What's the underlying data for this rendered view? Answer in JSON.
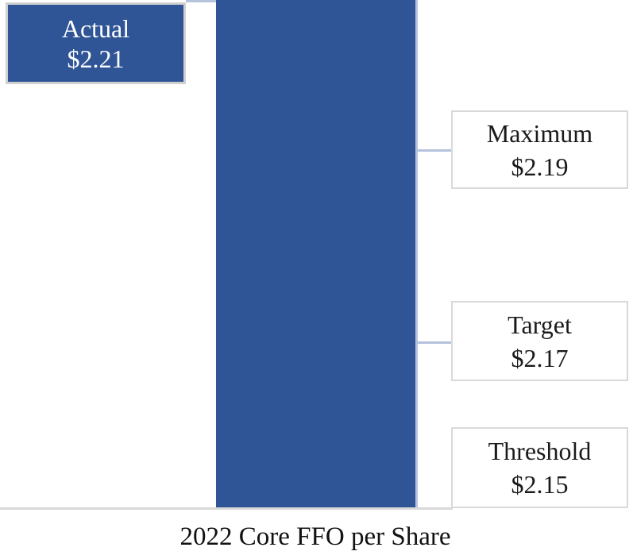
{
  "title": "2022 Core FFO per Share",
  "callouts": {
    "actual": {
      "label": "Actual",
      "value": "$2.21"
    },
    "maximum": {
      "label": "Maximum",
      "value": "$2.19"
    },
    "target": {
      "label": "Target",
      "value": "$2.17"
    },
    "threshold": {
      "label": "Threshold",
      "value": "$2.15"
    }
  },
  "colors": {
    "bar": "#2f5597",
    "leader": "#b6c3dc",
    "box-border": "#d9d9d9",
    "actual-border": "#d0d0d0",
    "baseline": "#d9d9d9",
    "label-text": "#1a1a1a",
    "actual-text": "#ffffff"
  },
  "chart_data": {
    "type": "bar",
    "title": "2022 Core FFO per Share",
    "categories": [
      "2022 Core FFO per Share"
    ],
    "series": [
      {
        "name": "Actual",
        "values": [
          2.21
        ]
      }
    ],
    "reference_markers": [
      {
        "label": "Maximum",
        "value": 2.19
      },
      {
        "label": "Target",
        "value": 2.17
      },
      {
        "label": "Threshold",
        "value": 2.15
      }
    ],
    "bar_color": "#2f5597",
    "legend": false,
    "grid": false,
    "xlabel": "2022 Core FFO per Share",
    "ylabel": ""
  }
}
